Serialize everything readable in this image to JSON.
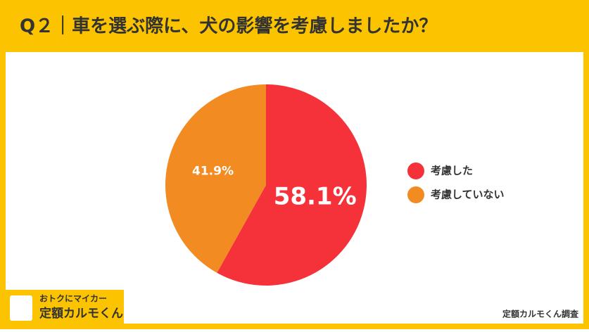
{
  "chart_data": {
    "type": "pie",
    "title": "Q２｜車を選ぶ際に、犬の影響を考慮しましたか？",
    "categories": [
      "考慮した",
      "考慮していない"
    ],
    "values": [
      58.1,
      41.9
    ],
    "value_labels": [
      "58.1%",
      "41.9%"
    ],
    "colors": [
      "#f5323a",
      "#f28c22"
    ],
    "legend": "right"
  },
  "footer": {
    "logo_line1": "おトクにマイカー",
    "logo_line2": "定額カルモくん",
    "source": "定額カルモくん調査"
  }
}
